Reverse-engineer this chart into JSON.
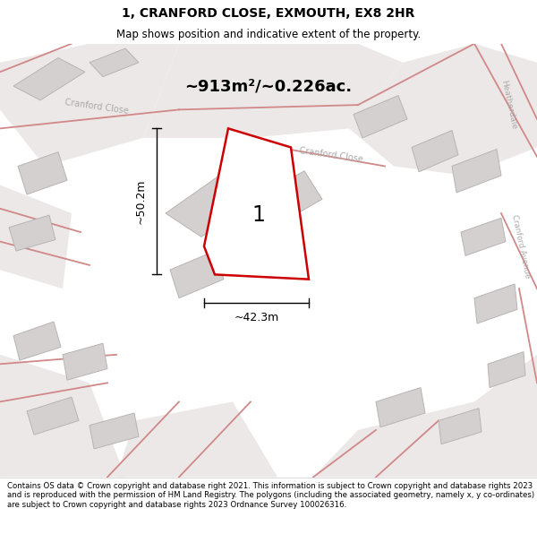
{
  "title": "1, CRANFORD CLOSE, EXMOUTH, EX8 2HR",
  "subtitle": "Map shows position and indicative extent of the property.",
  "area_text": "~913m²/~0.226ac.",
  "width_label": "~42.3m",
  "height_label": "~50.2m",
  "plot_number": "1",
  "footer": "Contains OS data © Crown copyright and database right 2021. This information is subject to Crown copyright and database rights 2023 and is reproduced with the permission of HM Land Registry. The polygons (including the associated geometry, namely x, y co-ordinates) are subject to Crown copyright and database rights 2023 Ordnance Survey 100026316.",
  "bg_color": "#f2eeee",
  "plot_fill": "#ffffff",
  "plot_outline_color": "#cc0000",
  "building_color": "#d4d0d0",
  "building_outline": "#b8b4b4",
  "road_line_color": "#d08888",
  "road_fill": "#ede8e8",
  "label_color": "#aaaaaa",
  "title_fontsize": 10,
  "subtitle_fontsize": 8.5,
  "area_fontsize": 13,
  "dim_fontsize": 9,
  "footer_fontsize": 6.2
}
